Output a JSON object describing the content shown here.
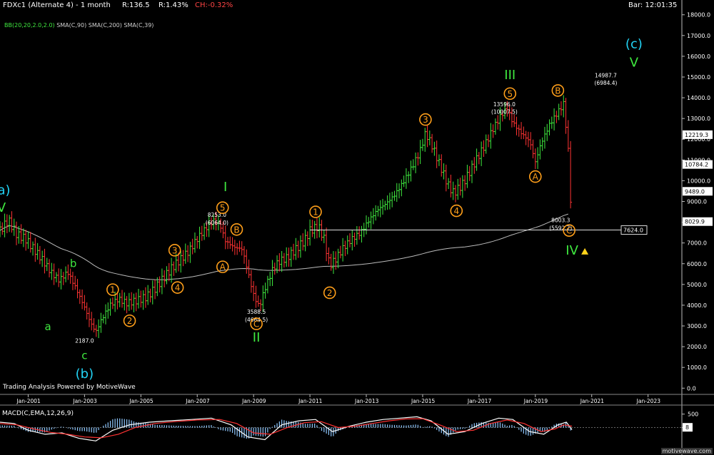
{
  "header": {
    "symbol_label": "FDXc1 (Alternate 4) - 1 month",
    "range_label": "R:136.5",
    "pct_label": "R:1.43%",
    "change_label": "CH:-0.32%",
    "bar_time_label": "Bar: 12:01:35",
    "colors": {
      "text": "#ffffff",
      "change": "#ff4444"
    }
  },
  "indicators": [
    {
      "label": "BB(20,20,2.0,2.0)",
      "color": "#3fe83f"
    },
    {
      "label": "SMA(C,90)",
      "color": "#d0d0d0"
    },
    {
      "label": "SMA(C,200)",
      "color": "#d0d0d0"
    },
    {
      "label": "SMA(C,39)",
      "color": "#d0d0d0"
    }
  ],
  "footer": {
    "credit": "Trading Analysis Powered by MotiveWave",
    "brand": "motivewave.com"
  },
  "chart_data": [
    {
      "type": "candlestick",
      "x_axis": {
        "ticks": [
          "Jan-2001",
          "Jan-2003",
          "Jan-2005",
          "Jan-2007",
          "Jan-2009",
          "Jan-2011",
          "Jan-2013",
          "Jan-2015",
          "Jan-2017",
          "Jan-2019",
          "Jan-2021",
          "Jan-2023"
        ]
      },
      "y_axis": {
        "ticks": [
          0,
          1000,
          2000,
          3000,
          4000,
          5000,
          6000,
          7000,
          8000,
          9000,
          10000,
          11000,
          12000,
          13000,
          14000,
          15000,
          16000,
          17000,
          18000
        ],
        "ylim": [
          -300,
          18300
        ]
      },
      "x_range": [
        2000.0,
        2024.2
      ],
      "price_series": [
        [
          2000.0,
          7600
        ],
        [
          2000.3,
          8100
        ],
        [
          2000.6,
          7400
        ],
        [
          2000.9,
          7200
        ],
        [
          2001.2,
          6700
        ],
        [
          2001.5,
          6200
        ],
        [
          2001.8,
          5600
        ],
        [
          2002.1,
          5200
        ],
        [
          2002.4,
          5600
        ],
        [
          2002.7,
          4800
        ],
        [
          2003.0,
          3900
        ],
        [
          2003.2,
          3200
        ],
        [
          2003.4,
          2700
        ],
        [
          2003.6,
          3300
        ],
        [
          2003.9,
          4000
        ],
        [
          2004.2,
          4300
        ],
        [
          2004.5,
          4100
        ],
        [
          2004.8,
          4200
        ],
        [
          2005.2,
          4400
        ],
        [
          2005.5,
          4800
        ],
        [
          2005.8,
          5300
        ],
        [
          2006.1,
          5800
        ],
        [
          2006.4,
          6200
        ],
        [
          2006.7,
          6600
        ],
        [
          2007.0,
          7200
        ],
        [
          2007.3,
          7700
        ],
        [
          2007.6,
          8100
        ],
        [
          2007.8,
          7900
        ],
        [
          2008.0,
          7100
        ],
        [
          2008.3,
          6800
        ],
        [
          2008.6,
          6700
        ],
        [
          2008.8,
          5600
        ],
        [
          2009.0,
          4500
        ],
        [
          2009.2,
          3900
        ],
        [
          2009.4,
          4800
        ],
        [
          2009.7,
          5800
        ],
        [
          2009.9,
          6100
        ],
        [
          2010.2,
          6300
        ],
        [
          2010.5,
          6700
        ],
        [
          2010.8,
          7100
        ],
        [
          2011.0,
          7600
        ],
        [
          2011.3,
          7800
        ],
        [
          2011.5,
          7200
        ],
        [
          2011.7,
          5900
        ],
        [
          2011.9,
          6200
        ],
        [
          2012.2,
          6800
        ],
        [
          2012.5,
          7200
        ],
        [
          2012.8,
          7500
        ],
        [
          2013.1,
          8100
        ],
        [
          2013.4,
          8600
        ],
        [
          2013.7,
          8900
        ],
        [
          2014.0,
          9300
        ],
        [
          2014.3,
          9900
        ],
        [
          2014.6,
          10600
        ],
        [
          2014.9,
          11400
        ],
        [
          2015.1,
          12300
        ],
        [
          2015.3,
          11800
        ],
        [
          2015.6,
          10800
        ],
        [
          2015.9,
          9800
        ],
        [
          2016.1,
          9400
        ],
        [
          2016.4,
          9800
        ],
        [
          2016.7,
          10500
        ],
        [
          2016.9,
          11000
        ],
        [
          2017.2,
          11700
        ],
        [
          2017.5,
          12500
        ],
        [
          2017.8,
          13200
        ],
        [
          2018.0,
          13500
        ],
        [
          2018.2,
          12800
        ],
        [
          2018.5,
          12300
        ],
        [
          2018.8,
          11900
        ],
        [
          2019.0,
          10900
        ],
        [
          2019.2,
          11800
        ],
        [
          2019.5,
          12700
        ],
        [
          2019.8,
          13300
        ],
        [
          2020.0,
          13700
        ],
        [
          2020.1,
          12500
        ],
        [
          2020.2,
          10900
        ],
        [
          2020.25,
          9100
        ],
        [
          2020.3,
          9500
        ]
      ],
      "horizontal_line": {
        "value": 7624.0,
        "label": "7624.0"
      },
      "price_tags": [
        {
          "label": "12219.3",
          "value": 12219.3
        },
        {
          "label": "10784.2",
          "value": 10784.2
        },
        {
          "label": "9489.0",
          "value": 9489.0
        },
        {
          "label": "8029.9",
          "value": 8029.9
        }
      ],
      "price_annotations": [
        {
          "text": "8253.0",
          "x": 2007.7,
          "y": 8253
        },
        {
          "text": "(6064.0)",
          "x": 2007.7,
          "y": 7880
        },
        {
          "text": "3588.5",
          "x": 2009.1,
          "y": 3588.5
        },
        {
          "text": "(4664.5)",
          "x": 2009.1,
          "y": 3215
        },
        {
          "text": "2187.0",
          "x": 2003.0,
          "y": 2187
        },
        {
          "text": "13596.0",
          "x": 2017.9,
          "y": 13596
        },
        {
          "text": "(10007.5)",
          "x": 2017.9,
          "y": 13223
        },
        {
          "text": "14987.7",
          "x": 2021.5,
          "y": 14987.7
        },
        {
          "text": "(6984.4)",
          "x": 2021.5,
          "y": 14614
        },
        {
          "text": "8003.3",
          "x": 2019.9,
          "y": 8003.3
        },
        {
          "text": "(5592.7)",
          "x": 2019.9,
          "y": 7630
        }
      ],
      "wave_labels": [
        {
          "text": "(a)",
          "x": 2000.05,
          "y": 9550,
          "style": "cyan"
        },
        {
          "text": "V",
          "x": 2000.05,
          "y": 8700,
          "style": "green"
        },
        {
          "text": "b",
          "x": 2002.6,
          "y": 6050,
          "style": "green-small"
        },
        {
          "text": "a",
          "x": 2001.7,
          "y": 3000,
          "style": "green-small"
        },
        {
          "text": "c",
          "x": 2003.0,
          "y": 1600,
          "style": "green-small"
        },
        {
          "text": "(b)",
          "x": 2003.0,
          "y": 700,
          "style": "cyan"
        },
        {
          "text": "1",
          "x": 2004.0,
          "y": 4750,
          "style": "orange-circle"
        },
        {
          "text": "2",
          "x": 2004.6,
          "y": 3250,
          "style": "orange-circle"
        },
        {
          "text": "3",
          "x": 2006.2,
          "y": 6650,
          "style": "orange-circle"
        },
        {
          "text": "4",
          "x": 2006.3,
          "y": 4850,
          "style": "orange-circle"
        },
        {
          "text": "5",
          "x": 2007.9,
          "y": 8700,
          "style": "orange-circle"
        },
        {
          "text": "I",
          "x": 2008.0,
          "y": 9700,
          "style": "green"
        },
        {
          "text": "B",
          "x": 2008.4,
          "y": 7650,
          "style": "orange-circle"
        },
        {
          "text": "A",
          "x": 2007.9,
          "y": 5850,
          "style": "orange-circle"
        },
        {
          "text": "C",
          "x": 2009.1,
          "y": 3100,
          "style": "orange-circle"
        },
        {
          "text": "II",
          "x": 2009.1,
          "y": 2450,
          "style": "green"
        },
        {
          "text": "1",
          "x": 2011.2,
          "y": 8500,
          "style": "orange-circle"
        },
        {
          "text": "2",
          "x": 2011.7,
          "y": 4600,
          "style": "orange-circle"
        },
        {
          "text": "3",
          "x": 2015.1,
          "y": 12950,
          "style": "orange-circle"
        },
        {
          "text": "4",
          "x": 2016.2,
          "y": 8550,
          "style": "orange-circle"
        },
        {
          "text": "5",
          "x": 2018.1,
          "y": 14200,
          "style": "orange-circle"
        },
        {
          "text": "III",
          "x": 2018.1,
          "y": 15100,
          "style": "green"
        },
        {
          "text": "B",
          "x": 2019.8,
          "y": 14350,
          "style": "orange-circle"
        },
        {
          "text": "A",
          "x": 2019.0,
          "y": 10200,
          "style": "orange-circle"
        },
        {
          "text": "C",
          "x": 2020.2,
          "y": 7600,
          "style": "orange-circle"
        },
        {
          "text": "IV",
          "x": 2020.3,
          "y": 6650,
          "style": "green"
        },
        {
          "text": "(c)",
          "x": 2022.5,
          "y": 16600,
          "style": "cyan"
        },
        {
          "text": "V",
          "x": 2022.5,
          "y": 15700,
          "style": "green"
        }
      ]
    },
    {
      "type": "line",
      "title": "MACD(C,EMA,12,26,9)",
      "y_ticks": [
        500,
        0
      ],
      "ylim": [
        -650,
        650
      ],
      "last_value_label": "8",
      "macd_series": [
        [
          2000.0,
          200
        ],
        [
          2000.5,
          150
        ],
        [
          2001.0,
          -100
        ],
        [
          2001.6,
          -250
        ],
        [
          2002.2,
          -200
        ],
        [
          2002.8,
          -400
        ],
        [
          2003.4,
          -500
        ],
        [
          2004.0,
          -100
        ],
        [
          2004.6,
          100
        ],
        [
          2005.3,
          200
        ],
        [
          2006.0,
          250
        ],
        [
          2006.8,
          300
        ],
        [
          2007.5,
          350
        ],
        [
          2008.2,
          100
        ],
        [
          2008.8,
          -350
        ],
        [
          2009.4,
          -450
        ],
        [
          2010.0,
          100
        ],
        [
          2010.6,
          250
        ],
        [
          2011.2,
          300
        ],
        [
          2011.8,
          -150
        ],
        [
          2012.4,
          50
        ],
        [
          2013.0,
          200
        ],
        [
          2013.6,
          300
        ],
        [
          2014.2,
          350
        ],
        [
          2014.8,
          400
        ],
        [
          2015.3,
          250
        ],
        [
          2015.9,
          -250
        ],
        [
          2016.5,
          -150
        ],
        [
          2017.1,
          150
        ],
        [
          2017.7,
          350
        ],
        [
          2018.2,
          300
        ],
        [
          2018.8,
          -150
        ],
        [
          2019.3,
          -250
        ],
        [
          2019.8,
          100
        ],
        [
          2020.1,
          200
        ],
        [
          2020.3,
          -80
        ]
      ],
      "signal_series": [
        [
          2000.0,
          150
        ],
        [
          2000.6,
          100
        ],
        [
          2001.2,
          -50
        ],
        [
          2001.8,
          -180
        ],
        [
          2002.4,
          -250
        ],
        [
          2003.0,
          -350
        ],
        [
          2003.6,
          -380
        ],
        [
          2004.2,
          -250
        ],
        [
          2004.8,
          0
        ],
        [
          2005.5,
          150
        ],
        [
          2006.2,
          220
        ],
        [
          2007.0,
          280
        ],
        [
          2007.8,
          300
        ],
        [
          2008.4,
          150
        ],
        [
          2009.0,
          -200
        ],
        [
          2009.6,
          -250
        ],
        [
          2010.2,
          0
        ],
        [
          2010.8,
          180
        ],
        [
          2011.4,
          220
        ],
        [
          2012.0,
          0
        ],
        [
          2012.6,
          50
        ],
        [
          2013.2,
          150
        ],
        [
          2013.8,
          250
        ],
        [
          2014.4,
          320
        ],
        [
          2015.0,
          330
        ],
        [
          2015.6,
          100
        ],
        [
          2016.2,
          -150
        ],
        [
          2016.8,
          -100
        ],
        [
          2017.4,
          150
        ],
        [
          2018.0,
          280
        ],
        [
          2018.6,
          150
        ],
        [
          2019.2,
          -150
        ],
        [
          2019.7,
          -50
        ],
        [
          2020.0,
          100
        ],
        [
          2020.3,
          50
        ]
      ]
    }
  ]
}
